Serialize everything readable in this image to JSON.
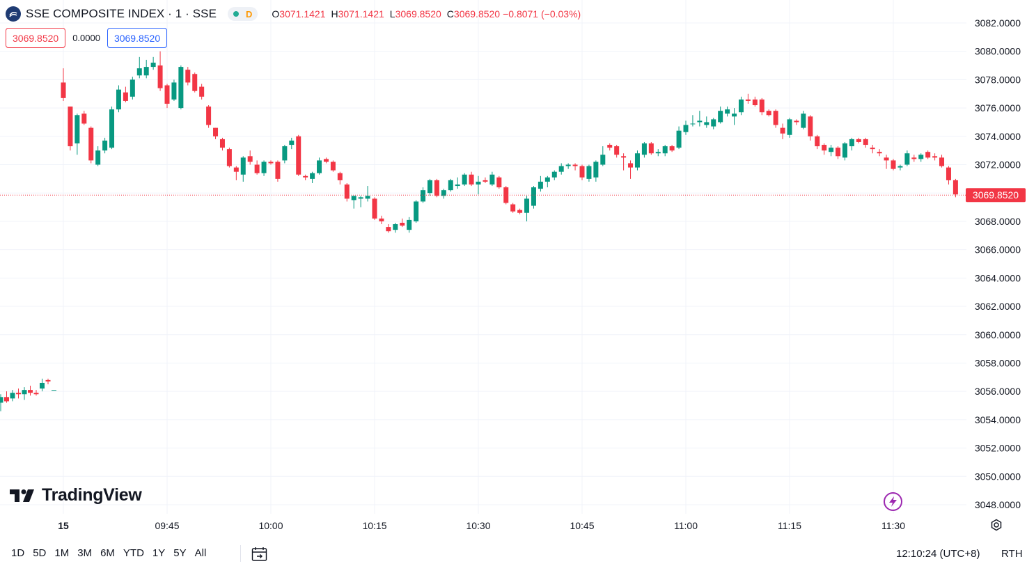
{
  "header": {
    "symbol_title": "SSE COMPOSITE INDEX · 1 · SSE",
    "status_letter": "D",
    "ohlc": {
      "o_label": "O",
      "o_value": "3071.1421",
      "h_label": "H",
      "h_value": "3071.1421",
      "l_label": "L",
      "l_value": "3069.8520",
      "c_label": "C",
      "c_value": "3069.8520",
      "change": "−0.8071 (−0.03%)"
    }
  },
  "quote": {
    "bid": "3069.8520",
    "spread": "0.0000",
    "ask": "3069.8520"
  },
  "branding": {
    "logo_text": "TradingView"
  },
  "bottom_bar": {
    "ranges": [
      "1D",
      "5D",
      "1M",
      "3M",
      "6M",
      "YTD",
      "1Y",
      "5Y",
      "All"
    ],
    "clock": "12:10:24 (UTC+8)",
    "session": "RTH"
  },
  "colors": {
    "up": "#089981",
    "down": "#f23645",
    "grid": "#f0f3fa",
    "text": "#131722",
    "last_price_bg": "#f23645"
  },
  "chart_data": {
    "type": "candlestick",
    "title": "SSE COMPOSITE INDEX · 1 · SSE",
    "interval": "1 minute",
    "ylim": [
      3047.2,
      3082.7
    ],
    "y_ticks": [
      "3082.0000",
      "3080.0000",
      "3078.0000",
      "3076.0000",
      "3074.0000",
      "3072.0000",
      "3070.0000",
      "3068.0000",
      "3066.0000",
      "3064.0000",
      "3062.0000",
      "3060.0000",
      "3058.0000",
      "3056.0000",
      "3054.0000",
      "3052.0000",
      "3050.0000",
      "3048.0000"
    ],
    "x_ticks": [
      "15",
      "09:45",
      "10:00",
      "10:15",
      "10:30",
      "10:45",
      "11:00",
      "11:15",
      "11:30"
    ],
    "last_price": "3069.8520",
    "grid": true,
    "prev_session_tail": [
      [
        3055.2,
        3055.8,
        3054.6,
        3055.6
      ],
      [
        3055.6,
        3056.0,
        3055.2,
        3055.3
      ],
      [
        3055.5,
        3056.1,
        3055.3,
        3055.9
      ],
      [
        3055.9,
        3056.2,
        3055.5,
        3055.8
      ],
      [
        3055.8,
        3056.3,
        3055.4,
        3056.1
      ],
      [
        3056.1,
        3056.4,
        3055.7,
        3055.9
      ],
      [
        3055.9,
        3056.1,
        3055.7,
        3055.8
      ],
      [
        3056.2,
        3056.9,
        3056.0,
        3056.6
      ],
      [
        3056.8,
        3056.9,
        3056.5,
        3056.7
      ],
      [
        3056.1,
        3056.1,
        3056.1,
        3056.1
      ]
    ],
    "ohlc": [
      [
        3077.8,
        3078.8,
        3076.5,
        3076.7
      ],
      [
        3076.1,
        3076.1,
        3073.0,
        3073.3
      ],
      [
        3073.5,
        3075.6,
        3072.7,
        3075.5
      ],
      [
        3075.6,
        3075.8,
        3074.8,
        3074.9
      ],
      [
        3074.6,
        3074.7,
        3072.1,
        3072.3
      ],
      [
        3072.0,
        3073.3,
        3071.9,
        3073.0
      ],
      [
        3073.0,
        3073.9,
        3072.8,
        3073.7
      ],
      [
        3073.2,
        3076.1,
        3073.1,
        3075.9
      ],
      [
        3075.9,
        3077.6,
        3075.7,
        3077.3
      ],
      [
        3077.1,
        3077.5,
        3076.4,
        3076.5
      ],
      [
        3076.8,
        3078.2,
        3076.6,
        3078.0
      ],
      [
        3078.3,
        3079.6,
        3078.1,
        3078.8
      ],
      [
        3078.3,
        3079.4,
        3078.1,
        3078.9
      ],
      [
        3078.9,
        3079.6,
        3078.7,
        3079.2
      ],
      [
        3079.0,
        3080.0,
        3077.2,
        3077.4
      ],
      [
        3077.6,
        3077.7,
        3076.0,
        3076.3
      ],
      [
        3076.6,
        3078.0,
        3076.5,
        3077.8
      ],
      [
        3076.0,
        3079.0,
        3075.9,
        3078.9
      ],
      [
        3078.7,
        3078.9,
        3077.6,
        3077.8
      ],
      [
        3078.4,
        3078.5,
        3077.1,
        3077.2
      ],
      [
        3077.5,
        3077.7,
        3076.6,
        3076.8
      ],
      [
        3076.1,
        3076.2,
        3074.6,
        3074.8
      ],
      [
        3074.6,
        3074.6,
        3073.8,
        3074.0
      ],
      [
        3073.8,
        3073.9,
        3073.0,
        3073.2
      ],
      [
        3073.1,
        3073.2,
        3071.8,
        3071.9
      ],
      [
        3071.8,
        3071.9,
        3070.9,
        3071.5
      ],
      [
        3071.3,
        3072.6,
        3070.8,
        3072.5
      ],
      [
        3072.6,
        3073.0,
        3072.0,
        3072.2
      ],
      [
        3072.0,
        3072.3,
        3071.3,
        3071.4
      ],
      [
        3071.4,
        3072.3,
        3071.2,
        3072.2
      ],
      [
        3072.2,
        3072.3,
        3072.0,
        3072.1
      ],
      [
        3072.2,
        3072.3,
        3070.8,
        3071.0
      ],
      [
        3072.3,
        3073.4,
        3072.1,
        3073.3
      ],
      [
        3073.4,
        3073.9,
        3073.1,
        3073.7
      ],
      [
        3074.0,
        3074.1,
        3071.2,
        3071.3
      ],
      [
        3071.2,
        3071.3,
        3070.9,
        3071.1
      ],
      [
        3071.0,
        3071.5,
        3070.7,
        3071.4
      ],
      [
        3071.4,
        3072.5,
        3071.3,
        3072.3
      ],
      [
        3072.4,
        3072.5,
        3072.1,
        3072.2
      ],
      [
        3072.2,
        3072.3,
        3071.5,
        3071.6
      ],
      [
        3071.4,
        3071.5,
        3070.6,
        3070.9
      ],
      [
        3070.6,
        3070.7,
        3069.4,
        3069.6
      ],
      [
        3069.5,
        3069.6,
        3068.9,
        3069.8
      ],
      [
        3069.6,
        3069.8,
        3069.0,
        3069.7
      ],
      [
        3069.6,
        3070.5,
        3069.4,
        3069.8
      ],
      [
        3069.6,
        3069.7,
        3068.1,
        3068.2
      ],
      [
        3068.2,
        3068.4,
        3067.8,
        3068.0
      ],
      [
        3067.6,
        3067.8,
        3067.2,
        3067.3
      ],
      [
        3067.4,
        3067.9,
        3067.2,
        3067.8
      ],
      [
        3067.9,
        3068.2,
        3067.6,
        3067.7
      ],
      [
        3067.4,
        3068.3,
        3067.2,
        3068.1
      ],
      [
        3068.0,
        3069.5,
        3067.9,
        3069.4
      ],
      [
        3069.4,
        3070.4,
        3069.3,
        3070.2
      ],
      [
        3070.0,
        3071.0,
        3069.8,
        3070.9
      ],
      [
        3070.9,
        3071.0,
        3069.7,
        3069.8
      ],
      [
        3069.8,
        3070.3,
        3069.6,
        3070.2
      ],
      [
        3070.2,
        3071.0,
        3070.1,
        3070.9
      ],
      [
        3070.5,
        3071.1,
        3070.3,
        3070.6
      ],
      [
        3070.6,
        3071.4,
        3070.5,
        3071.3
      ],
      [
        3071.3,
        3071.5,
        3070.5,
        3070.6
      ],
      [
        3070.6,
        3071.2,
        3069.9,
        3070.8
      ],
      [
        3070.9,
        3071.1,
        3070.7,
        3070.8
      ],
      [
        3070.6,
        3071.5,
        3070.5,
        3071.3
      ],
      [
        3071.1,
        3071.2,
        3070.3,
        3070.4
      ],
      [
        3070.4,
        3070.5,
        3069.2,
        3069.3
      ],
      [
        3069.2,
        3069.3,
        3068.6,
        3068.7
      ],
      [
        3068.8,
        3068.9,
        3068.5,
        3068.6
      ],
      [
        3068.6,
        3069.8,
        3068.0,
        3069.6
      ],
      [
        3069.1,
        3070.5,
        3068.9,
        3070.4
      ],
      [
        3070.3,
        3071.2,
        3070.1,
        3070.8
      ],
      [
        3070.8,
        3071.2,
        3070.4,
        3071.1
      ],
      [
        3071.1,
        3071.6,
        3070.9,
        3071.5
      ],
      [
        3071.5,
        3072.1,
        3071.3,
        3071.9
      ],
      [
        3071.9,
        3072.1,
        3071.7,
        3072.0
      ],
      [
        3072.0,
        3072.1,
        3071.6,
        3071.9
      ],
      [
        3071.9,
        3072.0,
        3070.9,
        3071.1
      ],
      [
        3071.0,
        3072.0,
        3070.8,
        3071.9
      ],
      [
        3071.1,
        3072.3,
        3070.8,
        3072.2
      ],
      [
        3072.0,
        3073.3,
        3071.9,
        3072.7
      ],
      [
        3073.4,
        3073.5,
        3073.0,
        3073.2
      ],
      [
        3073.3,
        3073.4,
        3072.5,
        3072.7
      ],
      [
        3072.6,
        3072.8,
        3071.6,
        3072.5
      ],
      [
        3072.1,
        3072.3,
        3071.0,
        3071.8
      ],
      [
        3071.8,
        3073.0,
        3071.6,
        3072.8
      ],
      [
        3072.7,
        3073.6,
        3072.5,
        3073.5
      ],
      [
        3073.5,
        3073.6,
        3072.7,
        3072.8
      ],
      [
        3072.8,
        3073.1,
        3072.6,
        3072.9
      ],
      [
        3072.8,
        3073.4,
        3072.6,
        3073.3
      ],
      [
        3073.3,
        3073.4,
        3072.9,
        3073.0
      ],
      [
        3073.2,
        3074.7,
        3073.1,
        3074.4
      ],
      [
        3074.3,
        3075.1,
        3074.1,
        3074.8
      ],
      [
        3074.9,
        3075.5,
        3074.7,
        3074.9
      ],
      [
        3075.0,
        3075.8,
        3074.7,
        3075.1
      ],
      [
        3074.8,
        3075.4,
        3074.6,
        3075.0
      ],
      [
        3074.7,
        3075.3,
        3074.5,
        3075.2
      ],
      [
        3075.0,
        3076.1,
        3074.9,
        3075.8
      ],
      [
        3075.6,
        3076.1,
        3075.4,
        3075.9
      ],
      [
        3075.4,
        3076.0,
        3074.8,
        3075.6
      ],
      [
        3075.7,
        3076.8,
        3075.5,
        3076.6
      ],
      [
        3076.6,
        3077.0,
        3076.3,
        3076.5
      ],
      [
        3076.6,
        3076.8,
        3076.1,
        3076.2
      ],
      [
        3076.6,
        3076.7,
        3075.5,
        3075.7
      ],
      [
        3075.8,
        3075.9,
        3075.4,
        3075.5
      ],
      [
        3075.8,
        3075.9,
        3074.6,
        3074.8
      ],
      [
        3074.6,
        3074.9,
        3073.8,
        3074.2
      ],
      [
        3074.1,
        3075.3,
        3073.9,
        3075.2
      ],
      [
        3075.1,
        3075.2,
        3074.8,
        3075.0
      ],
      [
        3074.6,
        3075.8,
        3074.5,
        3075.6
      ],
      [
        3075.4,
        3075.5,
        3073.7,
        3074.0
      ],
      [
        3074.0,
        3074.1,
        3073.1,
        3073.3
      ],
      [
        3073.4,
        3073.5,
        3072.7,
        3073.0
      ],
      [
        3072.9,
        3073.4,
        3072.6,
        3073.2
      ],
      [
        3073.2,
        3073.3,
        3072.4,
        3072.6
      ],
      [
        3072.5,
        3073.6,
        3072.3,
        3073.5
      ],
      [
        3073.3,
        3073.9,
        3073.0,
        3073.8
      ],
      [
        3073.8,
        3073.9,
        3073.5,
        3073.6
      ],
      [
        3073.8,
        3073.9,
        3073.2,
        3073.4
      ],
      [
        3073.2,
        3073.4,
        3072.8,
        3073.1
      ],
      [
        3072.9,
        3073.1,
        3072.6,
        3072.8
      ],
      [
        3072.5,
        3072.7,
        3071.7,
        3072.3
      ],
      [
        3072.3,
        3072.4,
        3071.6,
        3071.7
      ],
      [
        3071.8,
        3072.0,
        3071.6,
        3071.9
      ],
      [
        3072.0,
        3073.0,
        3071.9,
        3072.8
      ],
      [
        3072.5,
        3072.7,
        3072.2,
        3072.4
      ],
      [
        3072.4,
        3072.8,
        3072.2,
        3072.7
      ],
      [
        3072.9,
        3073.0,
        3072.4,
        3072.5
      ],
      [
        3072.6,
        3072.8,
        3072.3,
        3072.5
      ],
      [
        3072.5,
        3072.7,
        3071.8,
        3071.9
      ],
      [
        3071.8,
        3071.9,
        3070.6,
        3070.9
      ],
      [
        3070.9,
        3071.0,
        3069.7,
        3069.9
      ]
    ]
  }
}
